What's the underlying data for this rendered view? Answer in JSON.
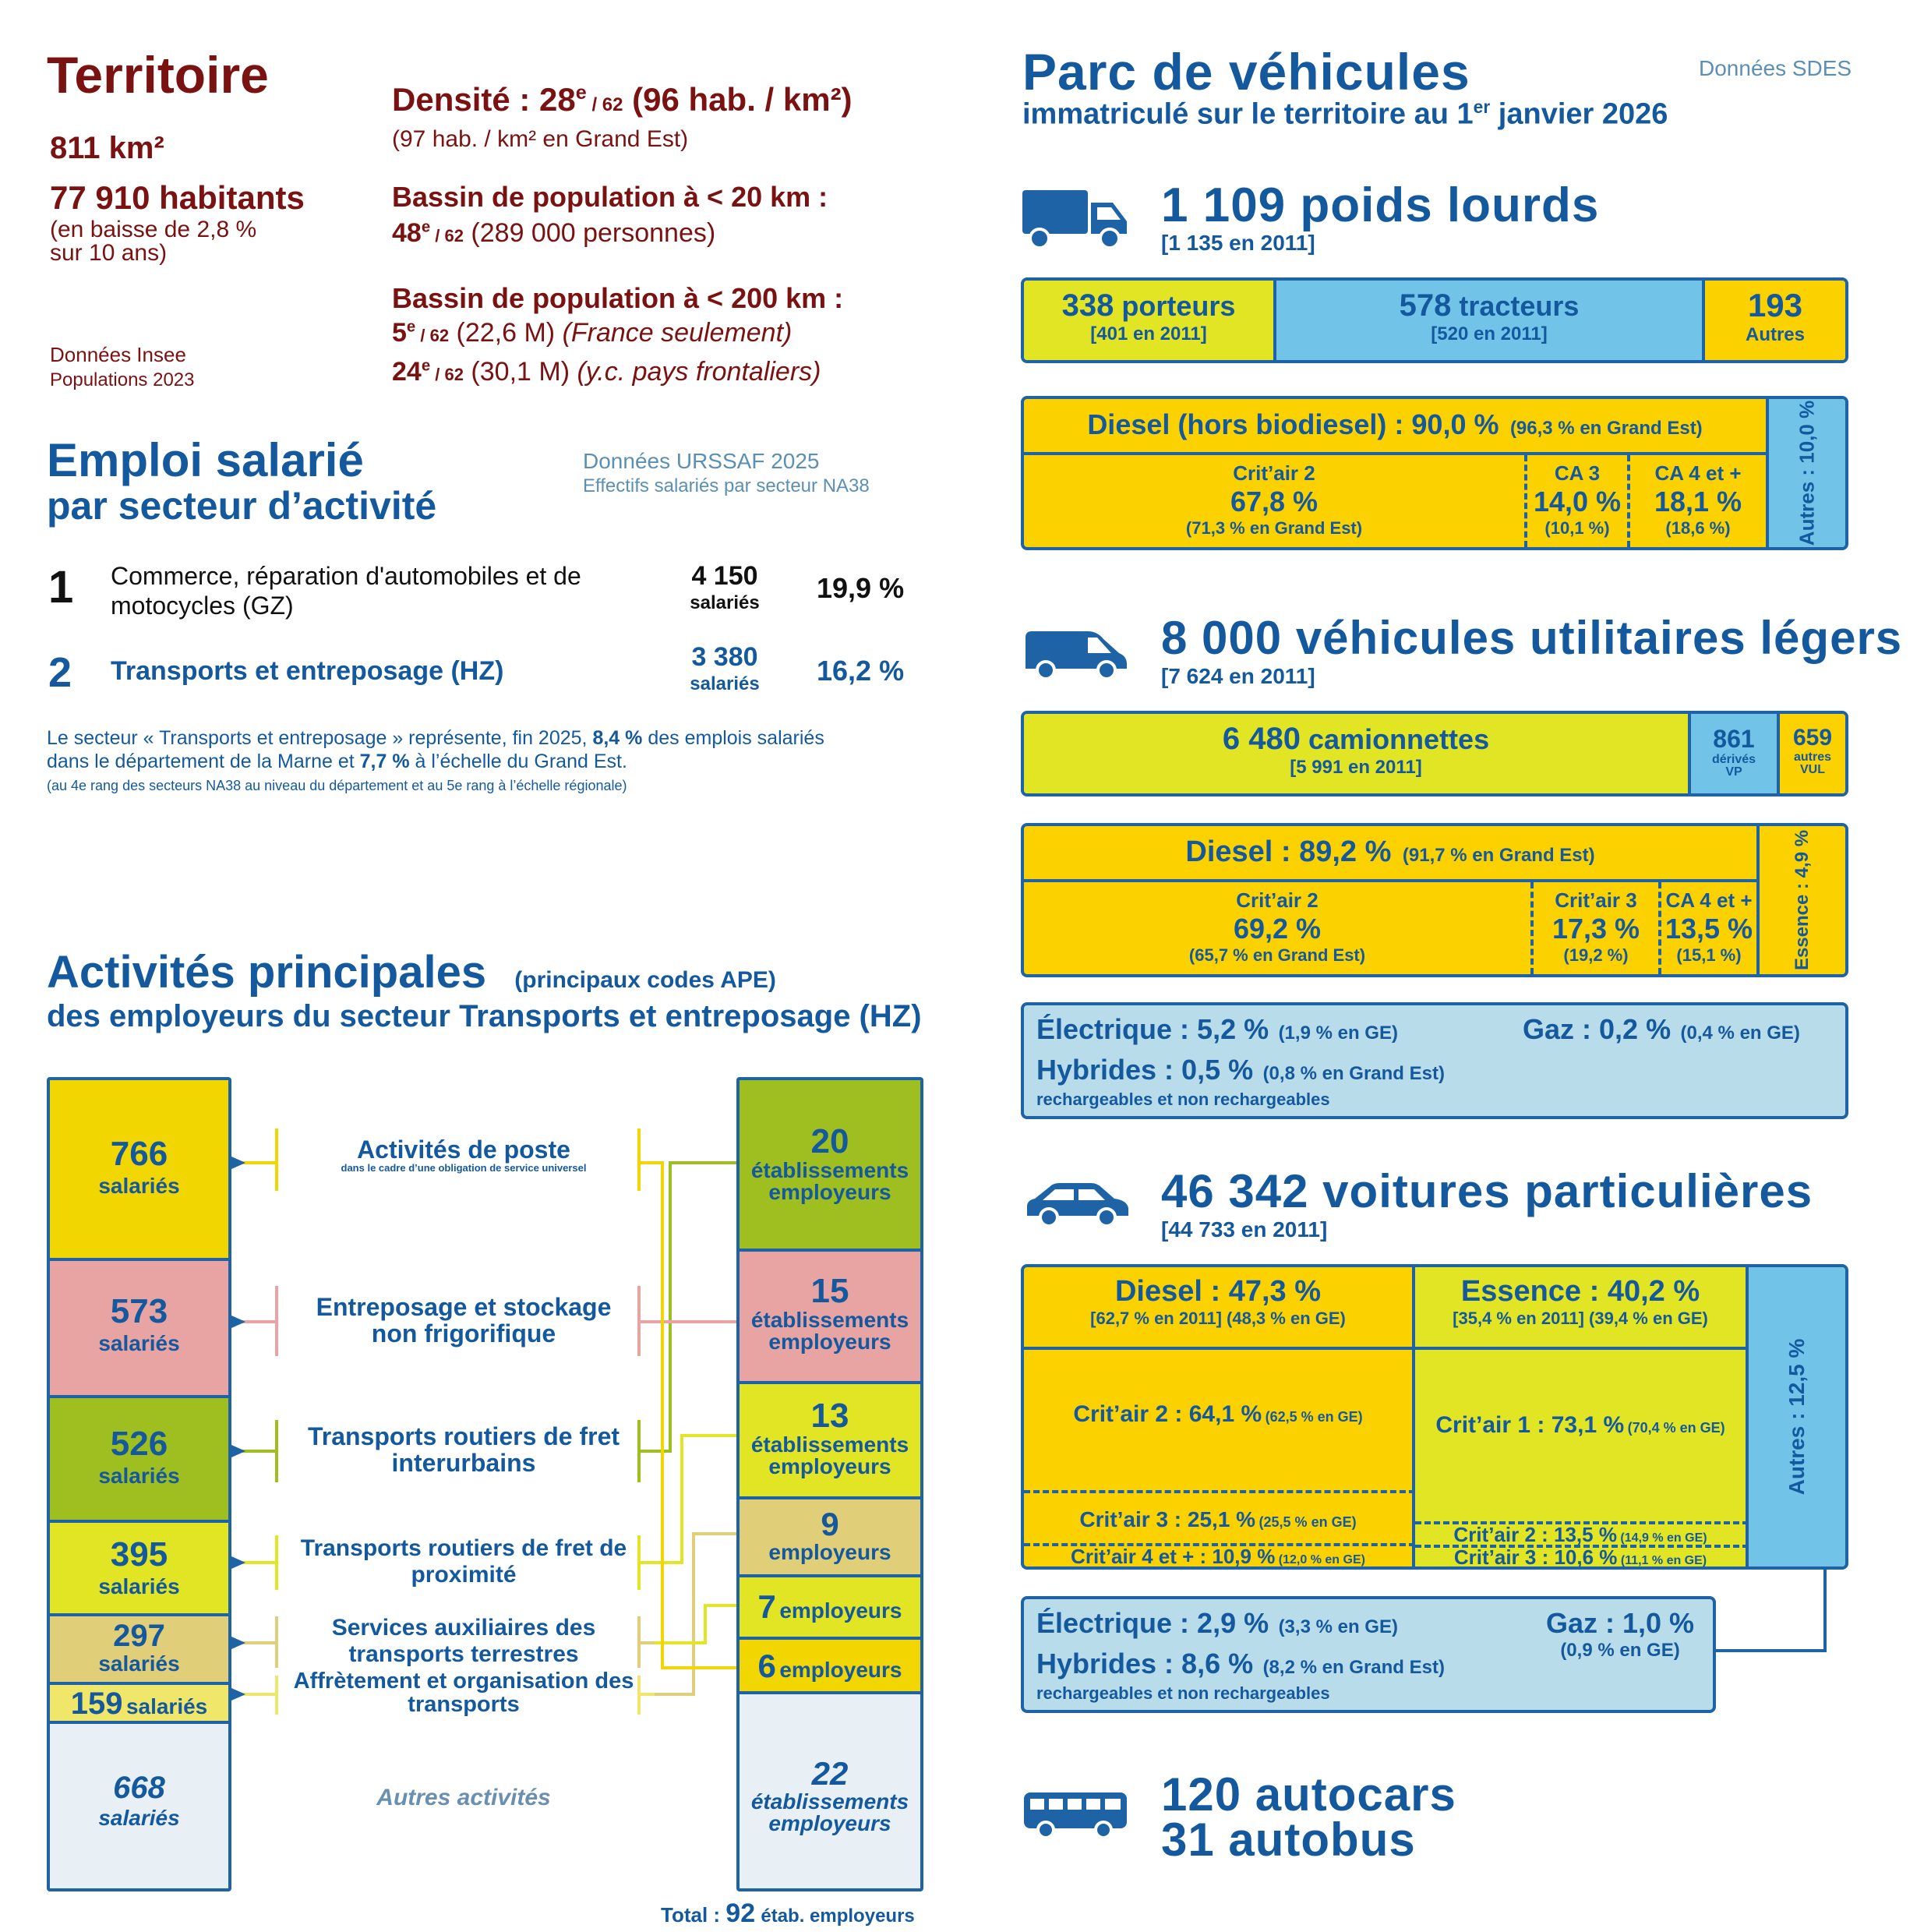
{
  "territoire": {
    "title": "Territoire",
    "area": "811 km²",
    "habitants": "77 910 habitants",
    "habitants_note1": "(en baisse de 2,8 %",
    "habitants_note2": "sur 10 ans)",
    "source1": "Données Insee",
    "source2": "Populations 2023",
    "densite_label": "Densité : 28",
    "densite_sup": "e",
    "densite_rank": " / 62",
    "densite_value": " (96 hab. / km²)",
    "densite_note": "(97 hab. / km² en Grand Est)",
    "bassin20_label": "Bassin de population à < 20 km :",
    "bassin20_rank": "48",
    "bassin20_sup": "e",
    "bassin20_of": " / 62",
    "bassin20_value": " (289 000 personnes)",
    "bassin200_label": "Bassin de population à < 200 km :",
    "bassin200_rank1": "5",
    "bassin200_sup1": "e",
    "bassin200_of1": " / 62",
    "bassin200_value1": " (22,6 M) ",
    "bassin200_note1": "(France seulement)",
    "bassin200_rank2": "24",
    "bassin200_sup2": "e",
    "bassin200_of2": " / 62",
    "bassin200_value2": " (30,1 M) ",
    "bassin200_note2": "(y.c. pays frontaliers)"
  },
  "emploi": {
    "title1": "Emploi salarié",
    "title2": "par secteur d’activité",
    "source1": "Données URSSAF 2025",
    "source2": "Effectifs salariés par secteur NA38",
    "rows": [
      {
        "rank": "1",
        "label": "Commerce, réparation d'automobiles et de motocycles (GZ)",
        "count": "4 150",
        "unit": "salariés",
        "pct": "19,9 %"
      },
      {
        "rank": "2",
        "label": "Transports et entreposage (HZ)",
        "count": "3 380",
        "unit": "salariés",
        "pct": "16,2 %"
      }
    ],
    "note_a": "Le secteur « Transports et entreposage » représente, fin 2025, ",
    "note_b": "8,4 %",
    "note_c": " des emplois salariés",
    "note_d": "dans le département de la Marne et ",
    "note_e": "7,7 %",
    "note_f": " à l’échelle du Grand Est.",
    "note_small": "(au 4e rang des secteurs NA38 au niveau du département et au 5e rang à l’échelle régionale)"
  },
  "activites": {
    "title1": "Activités principales",
    "title1_small": "(principaux codes APE)",
    "title2": "des employeurs du secteur Transports et entreposage (HZ)",
    "salaries": [
      {
        "value": "766",
        "unit": "salariés",
        "color": "#f2d602"
      },
      {
        "value": "573",
        "unit": "salariés",
        "color": "#e8a3a3"
      },
      {
        "value": "526",
        "unit": "salariés",
        "color": "#9fbe20"
      },
      {
        "value": "395",
        "unit": "salariés",
        "color": "#e2e523"
      },
      {
        "value": "297",
        "unit": "salariés",
        "color": "#e0ce78"
      },
      {
        "value": "159",
        "unit": "salariés",
        "color": "#f0e66a"
      },
      {
        "value": "668",
        "unit": "salariés",
        "color": "#e8f0f6"
      }
    ],
    "labels": [
      {
        "text": "Activités de poste",
        "sub": "dans le cadre d’une obligation de service universel"
      },
      {
        "text": "Entreposage et stockage non frigorifique",
        "sub": ""
      },
      {
        "text": "Transports routiers de fret interurbains",
        "sub": ""
      },
      {
        "text": "Transports routiers de fret de proximité",
        "sub": ""
      },
      {
        "text": "Services auxiliaires des transports terrestres",
        "sub": ""
      },
      {
        "text": "Affrètement et organisation des transports",
        "sub": ""
      }
    ],
    "autres": "Autres activités",
    "etabs": [
      {
        "value": "20",
        "unit1": "établissements",
        "unit2": "employeurs",
        "color": "#9fbe20"
      },
      {
        "value": "15",
        "unit1": "établissements",
        "unit2": "employeurs",
        "color": "#e8a3a3"
      },
      {
        "value": "13",
        "unit1": "établissements",
        "unit2": "employeurs",
        "color": "#e2e523"
      },
      {
        "value": "9",
        "unit1": "employeurs",
        "unit2": "",
        "color": "#e0ce78"
      },
      {
        "value": "7",
        "unit1": "employeurs",
        "unit2": "",
        "color": "#e2e523"
      },
      {
        "value": "6",
        "unit1": "employeurs",
        "unit2": "",
        "color": "#f2d602"
      },
      {
        "value": "22",
        "unit1": "établissements",
        "unit2": "employeurs",
        "color": "#e8f0f6"
      }
    ],
    "total_label": "Total :",
    "total_value": "92",
    "total_unit": "étab. employeurs"
  },
  "parc": {
    "title": "Parc de véhicules",
    "subtitle_a": "immatriculé sur le territoire au 1",
    "subtitle_sup": "er",
    "subtitle_b": " janvier 2026",
    "source": "Données SDES",
    "pl": {
      "title": "1 109 poids lourds",
      "sub": "[1 135 en 2011]",
      "porteurs_v": "338",
      "porteurs_l": " porteurs",
      "porteurs_s": "[401 en 2011]",
      "tracteurs_v": "578",
      "tracteurs_l": " tracteurs",
      "tracteurs_s": "[520 en 2011]",
      "autres_v": "193",
      "autres_l": "Autres",
      "diesel": "Diesel (hors biodiesel) : 90,0 %",
      "diesel_ge": "(96,3 % en Grand Est)",
      "c2_l": "Crit’air 2",
      "c2_v": "67,8 %",
      "c2_ge": "(71,3 % en Grand Est)",
      "c3_l": "CA 3",
      "c3_v": "14,0 %",
      "c3_ge": "(10,1 %)",
      "c4_l": "CA 4 et +",
      "c4_v": "18,1 %",
      "c4_ge": "(18,6 %)",
      "autres_side": "Autres : 10,0 %"
    },
    "vul": {
      "title": "8 000 véhicules utilitaires légers",
      "sub": "[7 624 en 2011]",
      "cam_v": "6 480",
      "cam_l": " camionnettes",
      "cam_s": "[5 991 en 2011]",
      "deriv_v": "861",
      "deriv_l1": "dérivés",
      "deriv_l2": "VP",
      "autres_v": "659",
      "autres_l1": "autres",
      "autres_l2": "VUL",
      "diesel": "Diesel : 89,2 %",
      "diesel_ge": "(91,7 % en Grand Est)",
      "c2_l": "Crit’air 2",
      "c2_v": "69,2 %",
      "c2_ge": "(65,7 % en Grand Est)",
      "c3_l": "Crit’air 3",
      "c3_v": "17,3 %",
      "c3_ge": "(19,2 %)",
      "c4_l": "CA 4 et +",
      "c4_v": "13,5 %",
      "c4_ge": "(15,1 %)",
      "essence_side": "Essence : 4,9 %",
      "elec": "Électrique : 5,2 %",
      "elec_ge": "(1,9 % en GE)",
      "gaz": "Gaz : 0,2 %",
      "gaz_ge": "(0,4 % en GE)",
      "hyb": "Hybrides : 0,5 %",
      "hyb_ge": "(0,8 % en Grand Est)",
      "hyb_sub": "rechargeables et non rechargeables"
    },
    "vp": {
      "title": "46 342 voitures particulières",
      "sub": "[44 733 en 2011]",
      "diesel": "Diesel : 47,3 %",
      "diesel_s": "[62,7 % en 2011]  (48,3 % en GE)",
      "essence": "Essence : 40,2 %",
      "essence_s": "[35,4 % en 2011]  (39,4 % en GE)",
      "d_c2": "Crit’air 2 : 64,1 %",
      "d_c2_ge": "(62,5 % en GE)",
      "d_c3": "Crit’air 3 : 25,1 %",
      "d_c3_ge": "(25,5 % en GE)",
      "d_c4": "Crit’air 4 et + : 10,9 %",
      "d_c4_ge": "(12,0 % en GE)",
      "e_c1": "Crit’air 1 : 73,1 %",
      "e_c1_ge": "(70,4 % en GE)",
      "e_c2": "Crit’air 2 : 13,5 %",
      "e_c2_ge": "(14,9 % en GE)",
      "e_c3": "Crit’air 3 : 10,6 %",
      "e_c3_ge": "(11,1 % en GE)",
      "autres_side": "Autres : 12,5 %",
      "elec": "Électrique : 2,9 %",
      "elec_ge": "(3,3 % en GE)",
      "gaz": "Gaz : 1,0 %",
      "gaz_ge": "(0,9 % en GE)",
      "hyb": "Hybrides : 8,6 %",
      "hyb_ge": "(8,2 % en Grand Est)",
      "hyb_sub": "rechargeables et non rechargeables"
    },
    "bus": {
      "autocars": "120 autocars",
      "autobus": "31 autobus"
    },
    "colors": {
      "yellow": "#fcd100",
      "lime": "#e2e523",
      "sky": "#71c3e8",
      "pale": "#b8dcea",
      "navy": "#1d63a5"
    }
  }
}
